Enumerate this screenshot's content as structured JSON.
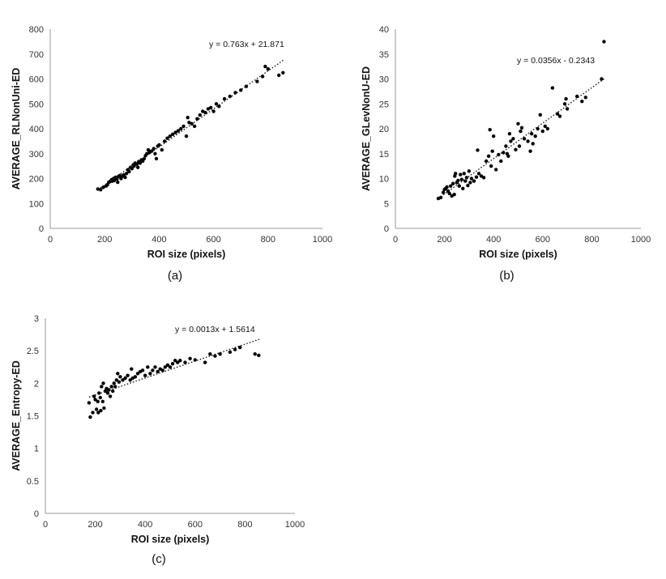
{
  "chart_data": [
    {
      "type": "scatter",
      "caption": "(a)",
      "xlabel": "ROI size (pixels)",
      "ylabel": "AVERAGE_RLNonUni-ED",
      "xlim": [
        0,
        1000
      ],
      "ylim": [
        0,
        800
      ],
      "xticks": [
        "0",
        "200",
        "400",
        "600",
        "800",
        "1000"
      ],
      "yticks": [
        "0",
        "100",
        "200",
        "300",
        "400",
        "500",
        "600",
        "700",
        "800"
      ],
      "trendline": {
        "label": "y = 0.763x + 21.871",
        "slope": 0.763,
        "intercept": 21.871,
        "x_range": [
          175,
          860
        ]
      },
      "points": [
        [
          175,
          158
        ],
        [
          185,
          155
        ],
        [
          195,
          165
        ],
        [
          205,
          170
        ],
        [
          210,
          175
        ],
        [
          215,
          185
        ],
        [
          220,
          188
        ],
        [
          225,
          195
        ],
        [
          228,
          190
        ],
        [
          232,
          200
        ],
        [
          235,
          192
        ],
        [
          240,
          205
        ],
        [
          245,
          198
        ],
        [
          248,
          185
        ],
        [
          250,
          208
        ],
        [
          255,
          212
        ],
        [
          260,
          200
        ],
        [
          265,
          210
        ],
        [
          270,
          215
        ],
        [
          275,
          205
        ],
        [
          280,
          220
        ],
        [
          285,
          235
        ],
        [
          290,
          228
        ],
        [
          295,
          245
        ],
        [
          300,
          240
        ],
        [
          305,
          255
        ],
        [
          308,
          250
        ],
        [
          312,
          262
        ],
        [
          318,
          258
        ],
        [
          322,
          245
        ],
        [
          325,
          268
        ],
        [
          330,
          262
        ],
        [
          335,
          275
        ],
        [
          340,
          270
        ],
        [
          345,
          280
        ],
        [
          350,
          292
        ],
        [
          355,
          300
        ],
        [
          360,
          315
        ],
        [
          365,
          305
        ],
        [
          372,
          310
        ],
        [
          380,
          320
        ],
        [
          385,
          300
        ],
        [
          390,
          280
        ],
        [
          395,
          330
        ],
        [
          400,
          335
        ],
        [
          410,
          315
        ],
        [
          420,
          350
        ],
        [
          430,
          362
        ],
        [
          440,
          370
        ],
        [
          450,
          378
        ],
        [
          460,
          385
        ],
        [
          470,
          392
        ],
        [
          480,
          400
        ],
        [
          490,
          410
        ],
        [
          500,
          370
        ],
        [
          505,
          445
        ],
        [
          510,
          425
        ],
        [
          520,
          420
        ],
        [
          530,
          410
        ],
        [
          540,
          440
        ],
        [
          550,
          455
        ],
        [
          560,
          470
        ],
        [
          570,
          465
        ],
        [
          580,
          480
        ],
        [
          590,
          485
        ],
        [
          600,
          470
        ],
        [
          610,
          500
        ],
        [
          620,
          490
        ],
        [
          640,
          520
        ],
        [
          660,
          530
        ],
        [
          680,
          545
        ],
        [
          700,
          555
        ],
        [
          720,
          570
        ],
        [
          760,
          590
        ],
        [
          780,
          610
        ],
        [
          790,
          650
        ],
        [
          800,
          640
        ],
        [
          840,
          615
        ],
        [
          855,
          625
        ]
      ]
    },
    {
      "type": "scatter",
      "caption": "(b)",
      "xlabel": "ROI size (pixels)",
      "ylabel": "AVERAGE_GLevNonU-ED",
      "xlim": [
        0,
        1000
      ],
      "ylim": [
        0,
        40
      ],
      "xticks": [
        "0",
        "200",
        "400",
        "600",
        "800",
        "1000"
      ],
      "yticks": [
        "0",
        "5",
        "10",
        "15",
        "20",
        "25",
        "30",
        "35",
        "40"
      ],
      "trendline": {
        "label": "y = 0.0356x - 0.2343",
        "slope": 0.0356,
        "intercept": -0.2343,
        "x_range": [
          175,
          850
        ]
      },
      "points": [
        [
          175,
          6.0
        ],
        [
          185,
          6.2
        ],
        [
          195,
          7.2
        ],
        [
          200,
          7.8
        ],
        [
          205,
          8.0
        ],
        [
          210,
          8.3
        ],
        [
          215,
          7.5
        ],
        [
          220,
          7.0
        ],
        [
          225,
          8.5
        ],
        [
          230,
          6.5
        ],
        [
          235,
          9.0
        ],
        [
          240,
          6.8
        ],
        [
          242,
          10.5
        ],
        [
          245,
          11.0
        ],
        [
          250,
          9.2
        ],
        [
          255,
          9.6
        ],
        [
          260,
          8.5
        ],
        [
          265,
          10.8
        ],
        [
          270,
          9.8
        ],
        [
          275,
          8.0
        ],
        [
          280,
          11.0
        ],
        [
          285,
          9.5
        ],
        [
          290,
          10.2
        ],
        [
          295,
          8.6
        ],
        [
          300,
          11.5
        ],
        [
          305,
          9.2
        ],
        [
          310,
          10.0
        ],
        [
          320,
          9.5
        ],
        [
          330,
          10.3
        ],
        [
          335,
          15.7
        ],
        [
          340,
          11.0
        ],
        [
          350,
          10.5
        ],
        [
          360,
          10.2
        ],
        [
          370,
          13.5
        ],
        [
          380,
          14.5
        ],
        [
          385,
          19.8
        ],
        [
          390,
          12.5
        ],
        [
          395,
          15.5
        ],
        [
          400,
          18.5
        ],
        [
          410,
          11.8
        ],
        [
          420,
          14.8
        ],
        [
          430,
          13.5
        ],
        [
          440,
          15.2
        ],
        [
          450,
          16.5
        ],
        [
          455,
          15.0
        ],
        [
          460,
          14.5
        ],
        [
          465,
          19.0
        ],
        [
          470,
          17.5
        ],
        [
          480,
          18.0
        ],
        [
          490,
          15.8
        ],
        [
          500,
          21.0
        ],
        [
          505,
          16.5
        ],
        [
          510,
          19.5
        ],
        [
          515,
          20.2
        ],
        [
          525,
          18.0
        ],
        [
          540,
          17.5
        ],
        [
          550,
          15.5
        ],
        [
          555,
          19.0
        ],
        [
          560,
          17.0
        ],
        [
          570,
          18.5
        ],
        [
          580,
          20.0
        ],
        [
          590,
          22.8
        ],
        [
          600,
          19.5
        ],
        [
          610,
          20.5
        ],
        [
          620,
          20.0
        ],
        [
          640,
          28.2
        ],
        [
          660,
          23.0
        ],
        [
          670,
          22.5
        ],
        [
          690,
          25.0
        ],
        [
          695,
          26.0
        ],
        [
          700,
          24.0
        ],
        [
          740,
          26.5
        ],
        [
          760,
          25.5
        ],
        [
          775,
          26.3
        ],
        [
          840,
          30.0
        ],
        [
          850,
          37.5
        ]
      ]
    },
    {
      "type": "scatter",
      "caption": "(c)",
      "xlabel": "ROI size (pixels)",
      "ylabel": "AVERAGE_Entropy-ED",
      "xlim": [
        0,
        1000
      ],
      "ylim": [
        0,
        3
      ],
      "xticks": [
        "0",
        "200",
        "400",
        "600",
        "800",
        "1000"
      ],
      "yticks": [
        "0",
        "0.5",
        "1",
        "1.5",
        "2",
        "2.5",
        "3"
      ],
      "trendline": {
        "label": "y = 0.0013x + 1.5614",
        "slope": 0.0013,
        "intercept": 1.5614,
        "x_range": [
          175,
          860
        ]
      },
      "points": [
        [
          175,
          1.7
        ],
        [
          180,
          1.48
        ],
        [
          190,
          1.55
        ],
        [
          195,
          1.8
        ],
        [
          200,
          1.75
        ],
        [
          205,
          1.6
        ],
        [
          210,
          1.72
        ],
        [
          212,
          1.55
        ],
        [
          215,
          1.85
        ],
        [
          220,
          1.78
        ],
        [
          222,
          1.58
        ],
        [
          225,
          1.95
        ],
        [
          230,
          1.72
        ],
        [
          232,
          2.0
        ],
        [
          235,
          1.62
        ],
        [
          240,
          1.88
        ],
        [
          245,
          1.92
        ],
        [
          250,
          1.85
        ],
        [
          255,
          1.9
        ],
        [
          260,
          1.8
        ],
        [
          265,
          1.95
        ],
        [
          270,
          1.88
        ],
        [
          275,
          2.0
        ],
        [
          280,
          1.95
        ],
        [
          285,
          2.05
        ],
        [
          290,
          2.15
        ],
        [
          295,
          2.02
        ],
        [
          300,
          2.1
        ],
        [
          310,
          2.05
        ],
        [
          320,
          2.08
        ],
        [
          330,
          2.12
        ],
        [
          340,
          2.05
        ],
        [
          345,
          2.22
        ],
        [
          350,
          2.08
        ],
        [
          360,
          2.1
        ],
        [
          370,
          2.15
        ],
        [
          380,
          2.18
        ],
        [
          390,
          2.2
        ],
        [
          400,
          2.12
        ],
        [
          410,
          2.25
        ],
        [
          420,
          2.15
        ],
        [
          430,
          2.2
        ],
        [
          440,
          2.25
        ],
        [
          450,
          2.18
        ],
        [
          460,
          2.22
        ],
        [
          470,
          2.2
        ],
        [
          480,
          2.25
        ],
        [
          490,
          2.28
        ],
        [
          500,
          2.25
        ],
        [
          510,
          2.3
        ],
        [
          520,
          2.35
        ],
        [
          530,
          2.32
        ],
        [
          540,
          2.35
        ],
        [
          560,
          2.32
        ],
        [
          580,
          2.38
        ],
        [
          600,
          2.36
        ],
        [
          640,
          2.32
        ],
        [
          660,
          2.45
        ],
        [
          680,
          2.42
        ],
        [
          700,
          2.45
        ],
        [
          740,
          2.48
        ],
        [
          760,
          2.52
        ],
        [
          780,
          2.55
        ],
        [
          840,
          2.45
        ],
        [
          855,
          2.43
        ]
      ]
    }
  ]
}
